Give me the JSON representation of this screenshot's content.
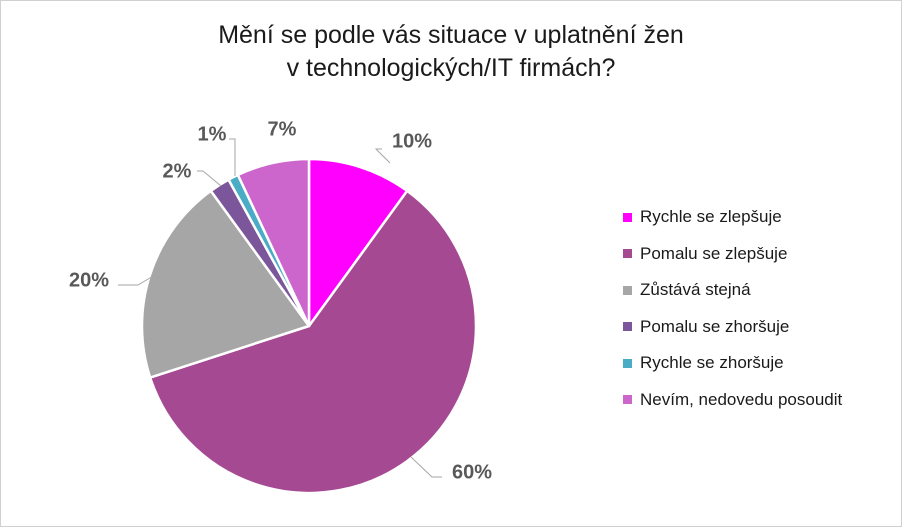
{
  "chart_data": {
    "type": "pie",
    "title_lines": [
      "Mění se podle vás situace v uplatnění žen",
      "v technologických/IT firmách?"
    ],
    "slices": [
      {
        "label": "Rychle se zlepšuje",
        "value": 10,
        "value_label": "10%",
        "color": "#ff00ff"
      },
      {
        "label": "Pomalu se zlepšuje",
        "value": 60,
        "value_label": "60%",
        "color": "#a64993"
      },
      {
        "label": "Zůstává stejná",
        "value": 20,
        "value_label": "20%",
        "color": "#a6a6a6"
      },
      {
        "label": "Pomalu se zhoršuje",
        "value": 2,
        "value_label": "2%",
        "color": "#7b569a"
      },
      {
        "label": "Rychle se zhoršuje",
        "value": 1,
        "value_label": "1%",
        "color": "#4bacc6"
      },
      {
        "label": "Nevím, nedovedu posoudit",
        "value": 7,
        "value_label": "7%",
        "color": "#cc66cc"
      }
    ],
    "legend_position": "right"
  }
}
